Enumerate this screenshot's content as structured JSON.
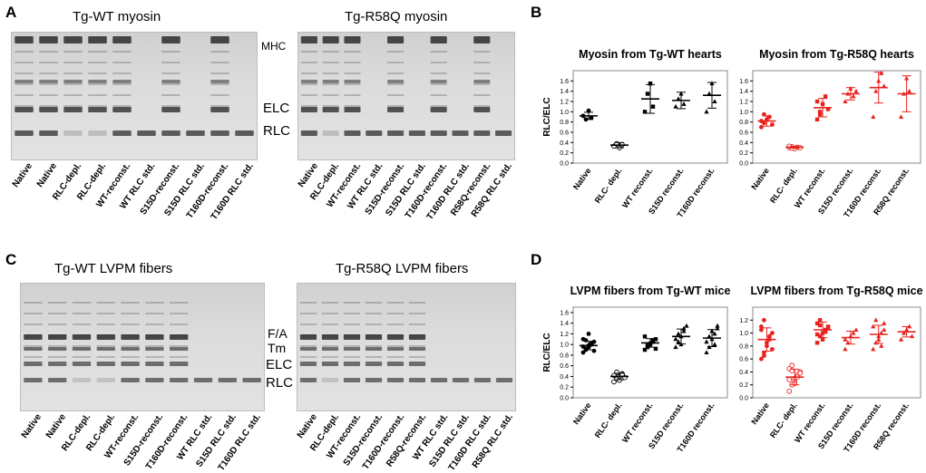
{
  "panels": {
    "A": {
      "letter": "A",
      "gel_left_title": "Tg-WT myosin",
      "gel_right_title": "Tg-R58Q myosin",
      "band_labels": [
        "MHC",
        "ELC",
        "RLC"
      ],
      "lanes_left": [
        "Native",
        "Native",
        "RLC-depl.",
        "RLC-depl.",
        "WT-reconst.",
        "WT RLC std.",
        "S15D-reconst.",
        "S15D RLC std.",
        "T160D-reconst.",
        "T160D RLC std."
      ],
      "lanes_right": [
        "Native",
        "RLC-depl.",
        "WT-reconst.",
        "WT RLC std.",
        "S15D-reconst.",
        "S15D RLC std.",
        "T160D-reconst.",
        "T160D RLC std.",
        "R58Q-reconst.",
        "R58Q RLC std."
      ]
    },
    "B": {
      "letter": "B"
    },
    "C": {
      "letter": "C",
      "gel_left_title": "Tg-WT LVPM fibers",
      "gel_right_title": "Tg-R58Q LVPM fibers",
      "band_labels": [
        "F/A",
        "Tm",
        "ELC",
        "RLC"
      ],
      "lanes_left": [
        "Native",
        "Native",
        "RLC-depl.",
        "RLC-depl.",
        "WT-reconst.",
        "S15D-reconst.",
        "T160D-reconst.",
        "WT RLC std.",
        "S15D RLC std.",
        "T160D RLC std."
      ],
      "lanes_right": [
        "Native",
        "RLC-depl.",
        "WT-reconst.",
        "S15D-reconst.",
        "T160D-reconst.",
        "R58Q-reconst.",
        "WT RLC std.",
        "S15D RLC std.",
        "T160D RLC std.",
        "R58Q RLC std."
      ]
    },
    "D": {
      "letter": "D"
    }
  },
  "chart_data": [
    {
      "type": "scatter",
      "panel": "B",
      "title": "Myosin from Tg-WT hearts",
      "ylabel": "RLC/ELC",
      "ylim": [
        0,
        1.8
      ],
      "yticks": [
        "0.0",
        "0.2",
        "0.4",
        "0.6",
        "0.8",
        "1.0",
        "1.2",
        "1.4",
        "1.6"
      ],
      "categories": [
        "Native",
        "RLC- depl.",
        "WT reconst.",
        "S15D reconst.",
        "T160D reconst."
      ],
      "color": "#000000",
      "points": [
        [
          0.92,
          0.85,
          1.02,
          0.88
        ],
        [
          0.33,
          0.38,
          0.3,
          0.36
        ],
        [
          1.0,
          1.35,
          1.55,
          1.1
        ],
        [
          1.1,
          1.25,
          1.35,
          1.15
        ],
        [
          1.0,
          1.35,
          1.55,
          1.2
        ]
      ],
      "mean": [
        0.92,
        0.35,
        1.25,
        1.22,
        1.32
      ],
      "sd": [
        0.07,
        0.05,
        0.28,
        0.16,
        0.25
      ]
    },
    {
      "type": "scatter",
      "panel": "B",
      "title": "Myosin from Tg-R58Q hearts",
      "ylabel": "RLC/ELC",
      "ylim": [
        0,
        1.8
      ],
      "yticks": [
        "0.0",
        "0.2",
        "0.4",
        "0.6",
        "0.8",
        "1.0",
        "1.2",
        "1.4",
        "1.6"
      ],
      "categories": [
        "Native",
        "RLC- depl.",
        "WT reconst.",
        "S15D reconst.",
        "T160D reconst.",
        "R58Q reconst."
      ],
      "color": "#e8231f",
      "points": [
        [
          0.7,
          0.78,
          0.85,
          0.9,
          0.75,
          0.82,
          0.95
        ],
        [
          0.3,
          0.32,
          0.28,
          0.31,
          0.3,
          0.33,
          0.29
        ],
        [
          0.85,
          1.0,
          1.15,
          1.3,
          1.05,
          1.2,
          0.95
        ],
        [
          1.2,
          1.35,
          1.45,
          1.3,
          1.4
        ],
        [
          0.9,
          1.4,
          1.6,
          1.75,
          1.5
        ],
        [
          0.9,
          1.35,
          1.65,
          1.4
        ]
      ],
      "mean": [
        0.82,
        0.31,
        1.08,
        1.35,
        1.47,
        1.35
      ],
      "sd": [
        0.1,
        0.02,
        0.18,
        0.12,
        0.3,
        0.35
      ]
    },
    {
      "type": "scatter",
      "panel": "D",
      "title": "LVPM fibers from Tg-WT mice",
      "ylabel": "RLC/ELC",
      "ylim": [
        0,
        1.7
      ],
      "yticks": [
        "0.0",
        "0.2",
        "0.4",
        "0.6",
        "0.8",
        "1.0",
        "1.2",
        "1.4",
        "1.6"
      ],
      "categories": [
        "Native",
        "RLC- depl.",
        "WT reconst.",
        "S15D reconst.",
        "T160D reconst."
      ],
      "color": "#000000",
      "points": [
        [
          0.85,
          0.9,
          0.95,
          1.0,
          1.05,
          1.1,
          0.92,
          0.98,
          1.02,
          0.88,
          0.96,
          1.08,
          1.2
        ],
        [
          0.3,
          0.35,
          0.4,
          0.45,
          0.38,
          0.42,
          0.48,
          0.33,
          0.44
        ],
        [
          0.9,
          0.95,
          1.0,
          1.05,
          1.1,
          1.15,
          0.98,
          1.02,
          1.08,
          0.92
        ],
        [
          0.95,
          1.05,
          1.15,
          1.25,
          1.35,
          1.1,
          1.2,
          1.0,
          1.3
        ],
        [
          0.85,
          0.95,
          1.1,
          1.2,
          1.3,
          1.05,
          1.15,
          1.25,
          1.0,
          1.35
        ]
      ],
      "mean": [
        0.98,
        0.4,
        1.03,
        1.15,
        1.12
      ],
      "sd": [
        0.08,
        0.06,
        0.08,
        0.14,
        0.16
      ]
    },
    {
      "type": "scatter",
      "panel": "D",
      "title": "LVPM fibers from Tg-R58Q mice",
      "ylabel": "RLC/ELC",
      "ylim": [
        0,
        1.4
      ],
      "yticks": [
        "0.0",
        "0.2",
        "0.4",
        "0.6",
        "0.8",
        "1.0",
        "1.2"
      ],
      "categories": [
        "Native",
        "RLC- depl.",
        "WT reconst.",
        "S15D reconst.",
        "T160D reconst.",
        "R58Q reconst."
      ],
      "color": "#e8231f",
      "points": [
        [
          0.6,
          0.7,
          0.8,
          0.9,
          1.0,
          1.1,
          1.2,
          0.85,
          0.95,
          0.75,
          1.05,
          0.65
        ],
        [
          0.1,
          0.2,
          0.3,
          0.35,
          0.4,
          0.45,
          0.5,
          0.25,
          0.32,
          0.38,
          0.28,
          0.42,
          0.22
        ],
        [
          0.85,
          0.95,
          1.0,
          1.05,
          1.1,
          1.15,
          1.2,
          0.9,
          1.02,
          1.08,
          0.98,
          1.12
        ],
        [
          0.75,
          0.85,
          0.95,
          1.0,
          1.05,
          0.9
        ],
        [
          0.75,
          0.85,
          0.9,
          1.0,
          1.05,
          1.1,
          1.2,
          0.95,
          0.8,
          1.15
        ],
        [
          0.9,
          1.0,
          1.05,
          1.1,
          0.95
        ]
      ],
      "mean": [
        0.9,
        0.32,
        1.05,
        0.93,
        0.98,
        1.02
      ],
      "sd": [
        0.18,
        0.12,
        0.12,
        0.1,
        0.14,
        0.08
      ]
    }
  ]
}
